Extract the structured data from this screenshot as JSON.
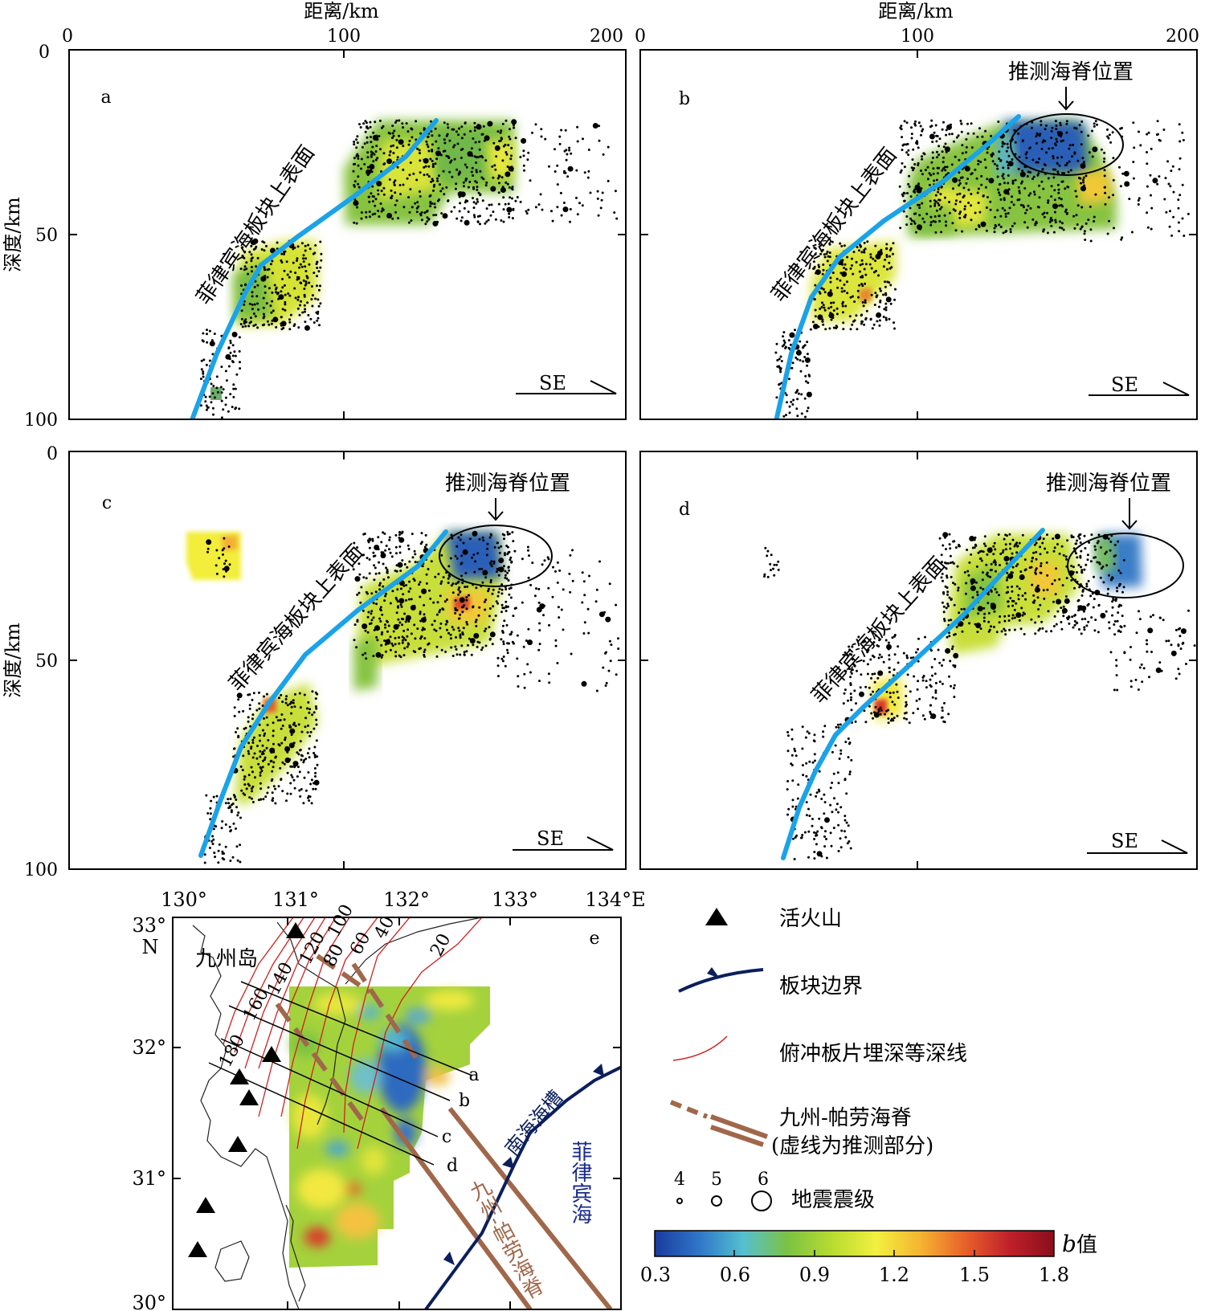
{
  "panels": [
    {
      "id": "a",
      "letter": "a",
      "callout": "",
      "slab_label": "菲律宾海板块上表面",
      "direction": "SE",
      "show_top_axis": true,
      "show_left_axis": true
    },
    {
      "id": "b",
      "letter": "b",
      "callout": "推测海脊位置",
      "slab_label": "菲律宾海板块上表面",
      "direction": "SE",
      "show_top_axis": true,
      "show_left_axis": false
    },
    {
      "id": "c",
      "letter": "c",
      "callout": "推测海脊位置",
      "slab_label": "菲律宾海板块上表面",
      "direction": "SE",
      "show_top_axis": false,
      "show_left_axis": true
    },
    {
      "id": "d",
      "letter": "d",
      "callout": "推测海脊位置",
      "slab_label": "菲律宾海板块上表面",
      "direction": "SE",
      "show_top_axis": false,
      "show_left_axis": false
    }
  ],
  "axes": {
    "x_label": "距离/km",
    "y_label": "深度/km",
    "x_ticks": [
      "0",
      "100",
      "200"
    ],
    "y_ticks": [
      "0",
      "50",
      "100"
    ]
  },
  "map": {
    "letter": "e",
    "lon_ticks": [
      "130°",
      "131°",
      "132°",
      "133°",
      "134°E"
    ],
    "lat_ticks": [
      "33°",
      "32°",
      "31°",
      "30°"
    ],
    "north_label": "N",
    "island_label": "九州岛",
    "contour_labels": [
      "20",
      "40",
      "60",
      "80",
      "100",
      "120",
      "140",
      "160",
      "180"
    ],
    "profile_labels": [
      "a",
      "b",
      "c",
      "d"
    ],
    "trough_label": "南海海槽",
    "sea_label": "菲律宾海",
    "ridge_label": "九州-帕劳海脊"
  },
  "legend": {
    "volcano": "活火山",
    "plate_boundary": "板块边界",
    "depth_contour": "俯冲板片埋深等深线",
    "ridge_line1": "九州-帕劳海脊",
    "ridge_line2": "(虚线为推测部分)",
    "mag_values": [
      "4",
      "5",
      "6"
    ],
    "mag_label": "地震震级",
    "b_label": "值",
    "b_symbol": "b",
    "colorbar_ticks": [
      "0.3",
      "0.6",
      "0.9",
      "1.2",
      "1.5",
      "1.8"
    ]
  },
  "colors": {
    "slab": "#1aa3e8",
    "ridge": "#a0674b",
    "boundary": "#0b1f5c",
    "contour": "#d02020",
    "colorbar": [
      "#1a3a9e",
      "#2f76c8",
      "#55c0d0",
      "#7cc242",
      "#b8dc30",
      "#f2f040",
      "#f5b430",
      "#e8602a",
      "#c0202a",
      "#8a0e1c"
    ]
  }
}
